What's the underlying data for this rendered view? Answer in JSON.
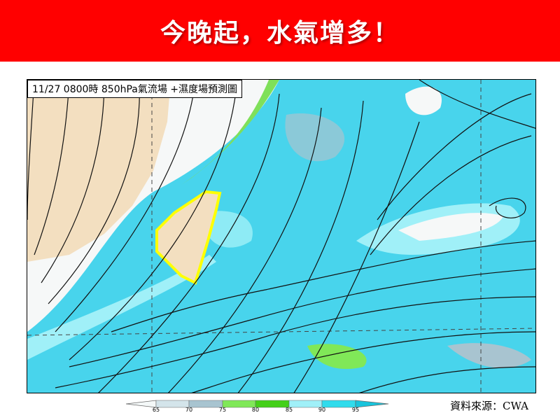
{
  "banner": {
    "headline": "今晚起，水氣增多！",
    "color": "#ff0000"
  },
  "map": {
    "title": "11/27 0800時  850hPa氣流場 +濕度場預測圖",
    "layers": [
      "850hPa streamlines",
      "relative humidity"
    ],
    "highlighted_region": "Taiwan",
    "highlight_color": "#ffff00"
  },
  "legend": {
    "ticks": [
      "65",
      "70",
      "75",
      "80",
      "85",
      "90",
      "95"
    ],
    "colors": [
      "#f4f8f8",
      "#d4e4ea",
      "#a8c4d0",
      "#80e858",
      "#44d018",
      "#a0f0f8",
      "#30dcec",
      "#18c4dc"
    ]
  },
  "source": "資料來源：CWA"
}
